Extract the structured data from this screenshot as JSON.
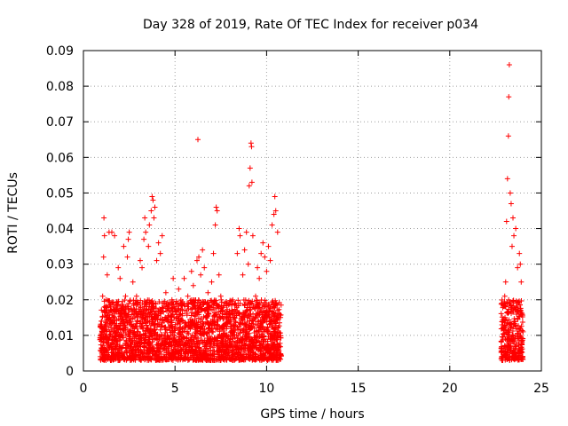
{
  "chart_data": {
    "type": "scatter",
    "title": "Day 328 of 2019, Rate Of TEC Index for receiver p034",
    "xlabel": "GPS time / hours",
    "ylabel": "ROTI / TECUs",
    "xlim": [
      0,
      25
    ],
    "ylim": [
      0,
      0.09
    ],
    "xticks": [
      0,
      5,
      10,
      15,
      20,
      25
    ],
    "xtick_labels": [
      "0",
      "5",
      "10",
      "15",
      "20",
      "25"
    ],
    "yticks": [
      0,
      0.01,
      0.02,
      0.03,
      0.04,
      0.05,
      0.06,
      0.07,
      0.08,
      0.09
    ],
    "ytick_labels": [
      "0",
      "0.01",
      "0.02",
      "0.03",
      "0.04",
      "0.05",
      "0.06",
      "0.07",
      "0.08",
      "0.09"
    ],
    "grid": true,
    "marker": "+",
    "color": "#ff0000",
    "series": [
      {
        "points": [
          [
            1.0,
            0.012
          ],
          [
            1.05,
            0.021
          ],
          [
            1.1,
            0.032
          ],
          [
            1.12,
            0.043
          ],
          [
            1.15,
            0.038
          ],
          [
            1.25,
            0.009
          ],
          [
            1.3,
            0.027
          ],
          [
            1.4,
            0.039
          ],
          [
            1.5,
            0.018
          ],
          [
            1.55,
            0.039
          ],
          [
            1.7,
            0.038
          ],
          [
            1.8,
            0.011
          ],
          [
            1.9,
            0.029
          ],
          [
            2.0,
            0.026
          ],
          [
            2.1,
            0.014
          ],
          [
            2.2,
            0.035
          ],
          [
            2.3,
            0.021
          ],
          [
            2.4,
            0.032
          ],
          [
            2.45,
            0.037
          ],
          [
            2.5,
            0.039
          ],
          [
            2.6,
            0.013
          ],
          [
            2.7,
            0.025
          ],
          [
            2.8,
            0.016
          ],
          [
            2.9,
            0.021
          ],
          [
            3.0,
            0.011
          ],
          [
            3.1,
            0.031
          ],
          [
            3.2,
            0.029
          ],
          [
            3.3,
            0.037
          ],
          [
            3.35,
            0.043
          ],
          [
            3.4,
            0.039
          ],
          [
            3.5,
            0.012
          ],
          [
            3.55,
            0.035
          ],
          [
            3.6,
            0.041
          ],
          [
            3.7,
            0.045
          ],
          [
            3.75,
            0.049
          ],
          [
            3.8,
            0.048
          ],
          [
            3.85,
            0.043
          ],
          [
            3.9,
            0.046
          ],
          [
            4.0,
            0.031
          ],
          [
            4.1,
            0.036
          ],
          [
            4.2,
            0.033
          ],
          [
            4.3,
            0.038
          ],
          [
            4.4,
            0.014
          ],
          [
            4.5,
            0.022
          ],
          [
            4.6,
            0.015
          ],
          [
            4.7,
            0.008
          ],
          [
            4.8,
            0.019
          ],
          [
            4.9,
            0.026
          ],
          [
            5.0,
            0.012
          ],
          [
            5.2,
            0.023
          ],
          [
            5.3,
            0.017
          ],
          [
            5.5,
            0.026
          ],
          [
            5.7,
            0.021
          ],
          [
            5.9,
            0.028
          ],
          [
            6.0,
            0.024
          ],
          [
            6.1,
            0.018
          ],
          [
            6.2,
            0.031
          ],
          [
            6.25,
            0.065
          ],
          [
            6.3,
            0.032
          ],
          [
            6.4,
            0.027
          ],
          [
            6.5,
            0.034
          ],
          [
            6.6,
            0.029
          ],
          [
            6.8,
            0.022
          ],
          [
            6.9,
            0.018
          ],
          [
            7.0,
            0.025
          ],
          [
            7.1,
            0.033
          ],
          [
            7.2,
            0.041
          ],
          [
            7.25,
            0.046
          ],
          [
            7.3,
            0.045
          ],
          [
            7.4,
            0.027
          ],
          [
            7.5,
            0.021
          ],
          [
            7.6,
            0.017
          ],
          [
            7.7,
            0.013
          ],
          [
            7.8,
            0.019
          ],
          [
            8.0,
            0.015
          ],
          [
            8.2,
            0.012
          ],
          [
            8.3,
            0.019
          ],
          [
            8.4,
            0.033
          ],
          [
            8.5,
            0.04
          ],
          [
            8.55,
            0.038
          ],
          [
            8.7,
            0.027
          ],
          [
            8.8,
            0.034
          ],
          [
            8.9,
            0.039
          ],
          [
            9.0,
            0.03
          ],
          [
            9.05,
            0.052
          ],
          [
            9.1,
            0.057
          ],
          [
            9.15,
            0.064
          ],
          [
            9.18,
            0.063
          ],
          [
            9.2,
            0.053
          ],
          [
            9.25,
            0.038
          ],
          [
            9.4,
            0.021
          ],
          [
            9.5,
            0.029
          ],
          [
            9.6,
            0.026
          ],
          [
            9.7,
            0.033
          ],
          [
            9.8,
            0.036
          ],
          [
            9.9,
            0.032
          ],
          [
            10.0,
            0.028
          ],
          [
            10.1,
            0.035
          ],
          [
            10.2,
            0.031
          ],
          [
            10.3,
            0.041
          ],
          [
            10.4,
            0.044
          ],
          [
            10.45,
            0.049
          ],
          [
            10.5,
            0.045
          ],
          [
            10.6,
            0.039
          ],
          [
            10.7,
            0.016
          ],
          [
            22.9,
            0.012
          ],
          [
            23.0,
            0.021
          ],
          [
            23.05,
            0.025
          ],
          [
            23.1,
            0.042
          ],
          [
            23.15,
            0.054
          ],
          [
            23.2,
            0.066
          ],
          [
            23.22,
            0.077
          ],
          [
            23.25,
            0.086
          ],
          [
            23.3,
            0.05
          ],
          [
            23.35,
            0.047
          ],
          [
            23.4,
            0.035
          ],
          [
            23.45,
            0.043
          ],
          [
            23.5,
            0.038
          ],
          [
            23.6,
            0.04
          ],
          [
            23.7,
            0.029
          ],
          [
            23.8,
            0.033
          ],
          [
            23.85,
            0.03
          ],
          [
            23.9,
            0.025
          ],
          [
            23.95,
            0.016
          ],
          [
            24.0,
            0.011
          ]
        ]
      }
    ],
    "dense_bands": [
      {
        "x_range": [
          0.9,
          10.8
        ],
        "y_range": [
          0.003,
          0.02
        ]
      },
      {
        "x_range": [
          22.8,
          24.0
        ],
        "y_range": [
          0.003,
          0.02
        ]
      }
    ]
  }
}
